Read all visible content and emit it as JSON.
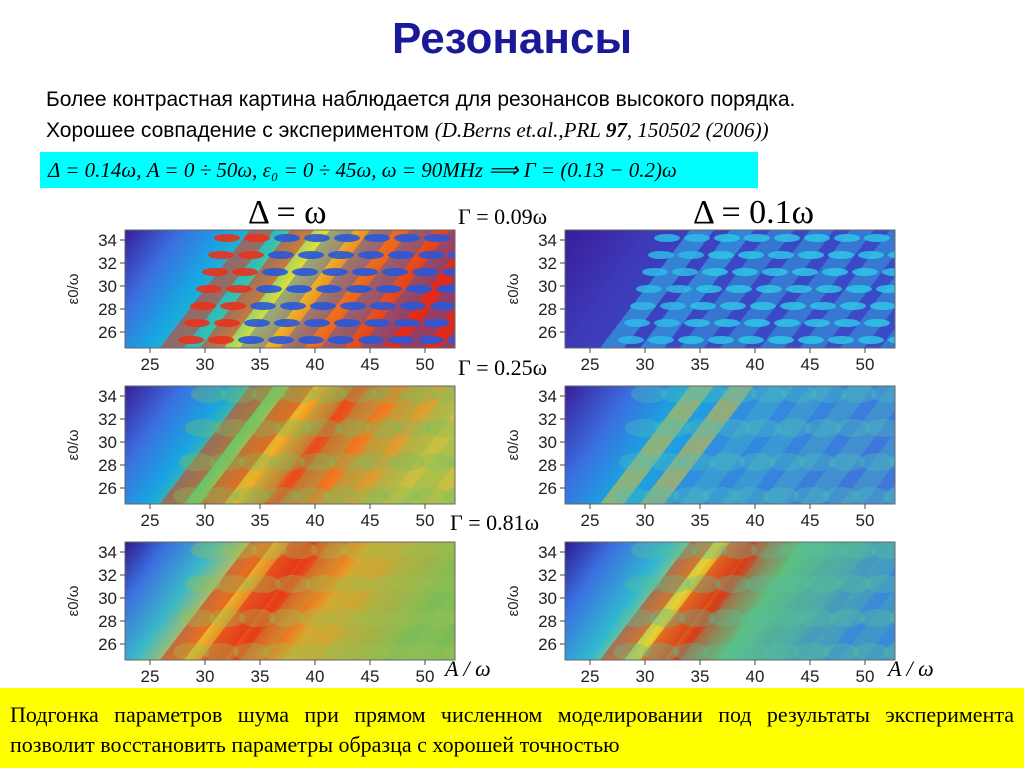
{
  "slide": {
    "title": "Резонансы",
    "line1": "Более контрастная картина наблюдается для резонансов высокого порядка.",
    "line2_text": "Хорошее совпадение с экспериментом ",
    "ref_open": "(D.Berns et.al.,PRL ",
    "ref_vol": "97",
    "ref_rest": ", 150502 (2006))",
    "formula": "Δ = 0.14ω, A = 0 ÷ 50ω, ε₀ = 0 ÷ 45ω, ω = 90MHz ⟹ Γ = (0.13 − 0.2)ω",
    "col_left_header": "Δ = ω",
    "col_right_header": "Δ = 0.1ω",
    "gammas": [
      "Γ = 0.09ω",
      "Γ = 0.25ω",
      "Γ = 0.81ω"
    ],
    "x_axis_label": "A / ω",
    "bottom_text": "Подгонка параметров шума при прямом численном моделировании под результаты эксперимента позволит восстановить параметры образца с хорошей точностью"
  },
  "plot_axes": {
    "y_label": "ε0/ω",
    "x_ticks": [
      "25",
      "30",
      "35",
      "40",
      "45",
      "50"
    ],
    "y_ticks": [
      "34",
      "32",
      "30",
      "28",
      "26"
    ]
  },
  "plots": [
    {
      "delta": "Δ = ω",
      "gamma": "Γ = 0.09ω"
    },
    {
      "delta": "Δ = 0.1ω",
      "gamma": "Γ = 0.09ω"
    },
    {
      "delta": "Δ = ω",
      "gamma": "Γ = 0.25ω"
    },
    {
      "delta": "Δ = 0.1ω",
      "gamma": "Γ = 0.25ω"
    },
    {
      "delta": "Δ = ω",
      "gamma": "Γ = 0.81ω"
    },
    {
      "delta": "Δ = 0.1ω",
      "gamma": "Γ = 0.81ω"
    }
  ]
}
